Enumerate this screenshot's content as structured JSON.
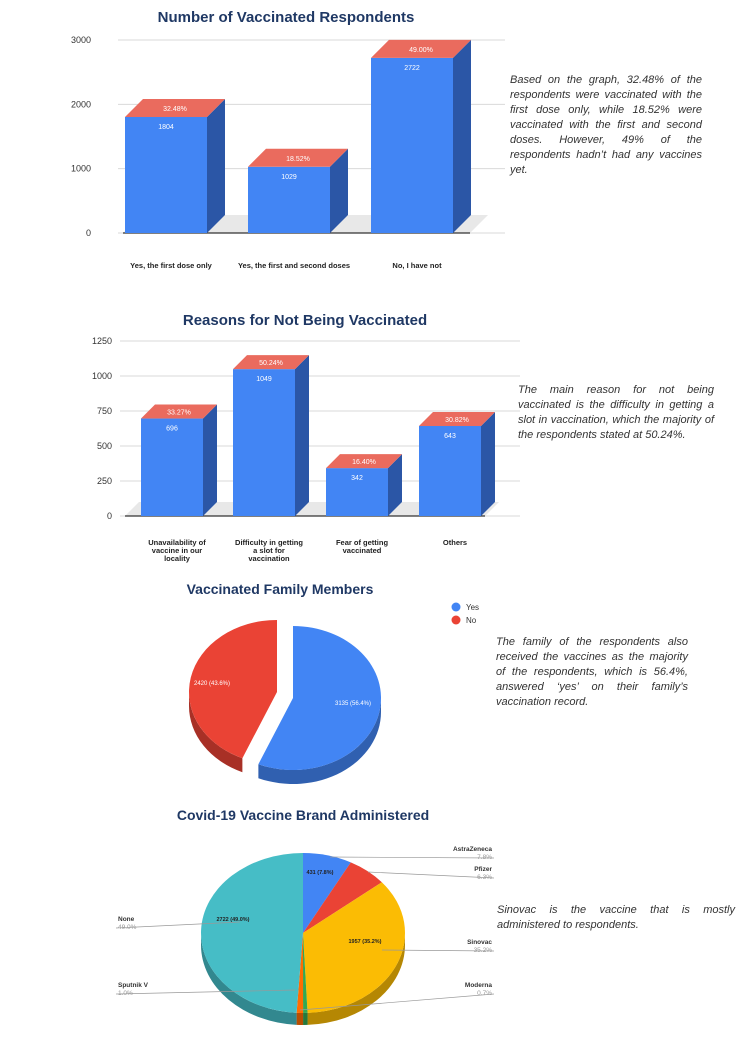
{
  "chart_data": [
    {
      "type": "bar",
      "title": "Number of Vaccinated Respondents",
      "categories": [
        "Yes, the first dose only",
        "Yes, the first and second doses",
        "No, I have not"
      ],
      "values": [
        1804,
        1029,
        2722
      ],
      "percent_labels": [
        "32.48%",
        "18.52%",
        "49.00%"
      ],
      "value_labels": [
        "1804",
        "1029",
        "2722"
      ],
      "yticks": [
        "0",
        "1000",
        "2000",
        "3000"
      ],
      "ylim": [
        0,
        3000
      ],
      "grid": true,
      "colors": {
        "bar": "#4285f4",
        "bar_side": "#2b56a6",
        "bar_top": "#ea6b5e"
      }
    },
    {
      "type": "bar",
      "title": "Reasons for Not Being Vaccinated",
      "categories": [
        [
          "Unavailability of",
          "vaccine in our",
          "locality"
        ],
        [
          "Difficulty in getting",
          "a slot for",
          "vaccination"
        ],
        [
          "Fear of getting",
          "vaccinated"
        ],
        [
          "Others"
        ]
      ],
      "values": [
        696,
        1049,
        342,
        643
      ],
      "percent_labels": [
        "33.27%",
        "50.24%",
        "16.40%",
        "30.82%"
      ],
      "value_labels": [
        "696",
        "1049",
        "342",
        "643"
      ],
      "yticks": [
        "0",
        "250",
        "500",
        "750",
        "1000",
        "1250"
      ],
      "ylim": [
        0,
        1250
      ],
      "grid": true,
      "colors": {
        "bar": "#4285f4",
        "bar_side": "#2b56a6",
        "bar_top": "#ea6b5e"
      }
    },
    {
      "type": "pie",
      "title": "Vaccinated Family Members",
      "labels": [
        "Yes",
        "No"
      ],
      "values": [
        3135,
        2420
      ],
      "slice_labels": [
        "3135 (56.4%)",
        "2420 (43.6%)"
      ],
      "colors": [
        "#4285f4",
        "#ea4335"
      ],
      "legend": "top-right"
    },
    {
      "type": "pie",
      "title": "Covid-19 Vaccine Brand Administered",
      "labels": [
        "AstraZeneca",
        "Pfizer",
        "Sinovac",
        "Moderna",
        "Sputnik V",
        "None"
      ],
      "values": [
        431,
        350,
        1957,
        39,
        56,
        2722
      ],
      "percents": [
        "7.8%",
        "6.3%",
        "35.2%",
        "0.7%",
        "1.0%",
        "49.0%"
      ],
      "slice_labels": [
        "431 (7.8%)",
        "",
        "1957 (35.2%)",
        "",
        "",
        "2722 (49.0%)"
      ],
      "colors": [
        "#4285f4",
        "#ea4335",
        "#fbbc04",
        "#34a853",
        "#ff6d01",
        "#46bdc6"
      ]
    }
  ],
  "notes": {
    "vaccinated": "Based on the graph, 32.48% of the respondents were vaccinated with the first dose only, while 18.52% were vaccinated with the first and second doses. However, 49% of the respondents hadn’t had any vaccines yet.",
    "reasons": "The main reason for not being vaccinated is the difficulty in getting a slot in vaccination, which the majority of the respondents stated at 50.24%.",
    "family": "The family of the respondents also received the vaccines as the majority of the respondents, which is 56.4%, answered ‘yes’ on their family’s vaccination record.",
    "brand": "Sinovac is the vaccine that is mostly administered to respondents."
  }
}
